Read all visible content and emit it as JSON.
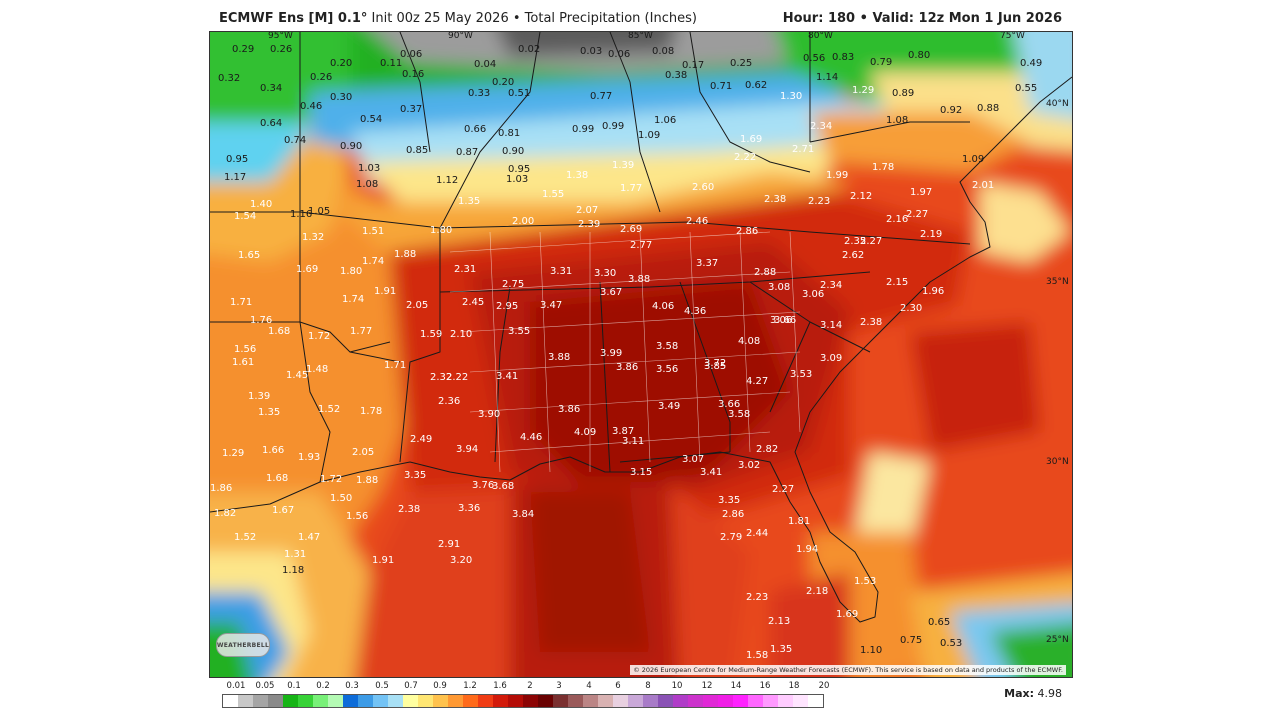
{
  "header": {
    "model": "ECMWF Ens [M] 0.1",
    "degree": "°",
    "init": "Init 00z 25 May 2026",
    "bullet": "•",
    "field": "Total Precipitation (Inches)",
    "hour_label": "Hour:",
    "hour_value": "180",
    "valid_label": "Valid:",
    "valid_value": "12z Mon 1 Jun 2026"
  },
  "map": {
    "longitude_labels": [
      "95°W",
      "90°W",
      "85°W",
      "80°W",
      "75°W"
    ],
    "latitude_labels": [
      "40°N",
      "35°N",
      "30°N",
      "25°N"
    ],
    "values": [
      "0.29",
      "0.26",
      "0.20",
      "0.11",
      "0.06",
      "0.04",
      "0.02",
      "0.03",
      "0.06",
      "0.08",
      "0.17",
      "0.25",
      "0.56",
      "0.83",
      "0.79",
      "0.80",
      "0.49",
      "0.32",
      "0.34",
      "0.26",
      "0.16",
      "0.33",
      "0.20",
      "0.51",
      "0.77",
      "0.38",
      "0.71",
      "0.62",
      "1.14",
      "1.29",
      "0.89",
      "0.55",
      "0.46",
      "0.30",
      "0.54",
      "0.37",
      "0.66",
      "0.81",
      "0.99",
      "0.99",
      "1.06",
      "1.30",
      "1.08",
      "0.92",
      "0.88",
      "0.64",
      "0.74",
      "0.90",
      "0.85",
      "0.87",
      "0.90",
      "1.09",
      "1.69",
      "2.34",
      "0.95",
      "1.17",
      "1.03",
      "1.08",
      "1.12",
      "1.03",
      "0.95",
      "1.38",
      "1.39",
      "2.22",
      "2.71",
      "1.99",
      "1.78",
      "1.09",
      "1.40",
      "1.16",
      "1.05",
      "1.35",
      "1.55",
      "1.77",
      "2.60",
      "2.38",
      "2.23",
      "2.12",
      "1.97",
      "2.01",
      "1.54",
      "1.32",
      "1.51",
      "1.80",
      "2.00",
      "2.07",
      "2.39",
      "2.69",
      "2.46",
      "2.86",
      "2.27",
      "2.16",
      "2.19",
      "2.35",
      "2.27",
      "1.65",
      "1.69",
      "1.80",
      "1.74",
      "1.88",
      "2.31",
      "2.75",
      "3.31",
      "3.30",
      "2.77",
      "3.37",
      "2.62",
      "2.88",
      "1.71",
      "1.74",
      "1.91",
      "2.05",
      "2.45",
      "2.95",
      "3.47",
      "3.67",
      "3.88",
      "3.08",
      "3.06",
      "2.34",
      "2.15",
      "1.96",
      "1.76",
      "1.68",
      "1.72",
      "1.77",
      "1.59",
      "2.10",
      "3.55",
      "4.06",
      "4.36",
      "3.06",
      "3.66",
      "3.14",
      "2.38",
      "2.30",
      "1.56",
      "1.61",
      "1.48",
      "1.45",
      "1.71",
      "2.32",
      "2.22",
      "3.41",
      "3.88",
      "3.99",
      "3.58",
      "3.72",
      "4.08",
      "3.09",
      "1.39",
      "1.35",
      "1.52",
      "1.78",
      "2.36",
      "3.90",
      "3.86",
      "3.56",
      "3.85",
      "4.27",
      "3.53",
      "3.86",
      "1.29",
      "1.66",
      "1.93",
      "2.05",
      "2.49",
      "3.94",
      "4.46",
      "4.09",
      "3.87",
      "3.49",
      "3.66",
      "3.58",
      "1.86",
      "1.68",
      "1.72",
      "1.88",
      "3.35",
      "3.76",
      "3.68",
      "3.11",
      "3.15",
      "3.07",
      "3.41",
      "3.02",
      "2.82",
      "1.82",
      "1.67",
      "1.50",
      "1.56",
      "2.38",
      "3.36",
      "3.84",
      "3.35",
      "2.86",
      "2.27",
      "1.81",
      "1.52",
      "1.47",
      "1.31",
      "1.18",
      "1.91",
      "2.91",
      "3.20",
      "2.79",
      "2.44",
      "1.94",
      "1.53",
      "2.18",
      "2.23",
      "2.13",
      "1.69",
      "0.65",
      "0.75",
      "0.53",
      "1.10",
      "1.58",
      "1.35"
    ],
    "copyright": "© 2026 European Centre for Medium-Range Weather Forecasts (ECMWF). This service is based on data and products of the ECMWF.",
    "logo_text": "WEATHERBELL"
  },
  "legend": {
    "labels": [
      "0.01",
      "0.05",
      "0.1",
      "0.2",
      "0.3",
      "0.5",
      "0.7",
      "0.9",
      "1.2",
      "1.6",
      "2",
      "3",
      "4",
      "6",
      "8",
      "10",
      "12",
      "14",
      "16",
      "18",
      "20"
    ],
    "colors": [
      "#ffffff",
      "#c8c8c8",
      "#a5a5a5",
      "#8a8a8a",
      "#16b416",
      "#37d237",
      "#78f078",
      "#b4fab4",
      "#0d6cd9",
      "#3d9be6",
      "#73c3f5",
      "#a8e0f5",
      "#ffffa0",
      "#ffe673",
      "#ffc24d",
      "#ff9933",
      "#ff6a1a",
      "#f03c14",
      "#d21a0a",
      "#b40c06",
      "#8c0404",
      "#6a0202",
      "#7a3030",
      "#9a5a5a",
      "#bb8585",
      "#d9b2b2",
      "#e8d0e0",
      "#c9a8d8",
      "#a87bc8",
      "#8a52b5",
      "#b03cc8",
      "#cc33cc",
      "#e028d6",
      "#f01ee6",
      "#ff22ff",
      "#ff66ff",
      "#ff99ff",
      "#ffccff",
      "#ffe5ff",
      "#ffffff"
    ],
    "max_label": "Max:",
    "max_value": "4.98"
  }
}
